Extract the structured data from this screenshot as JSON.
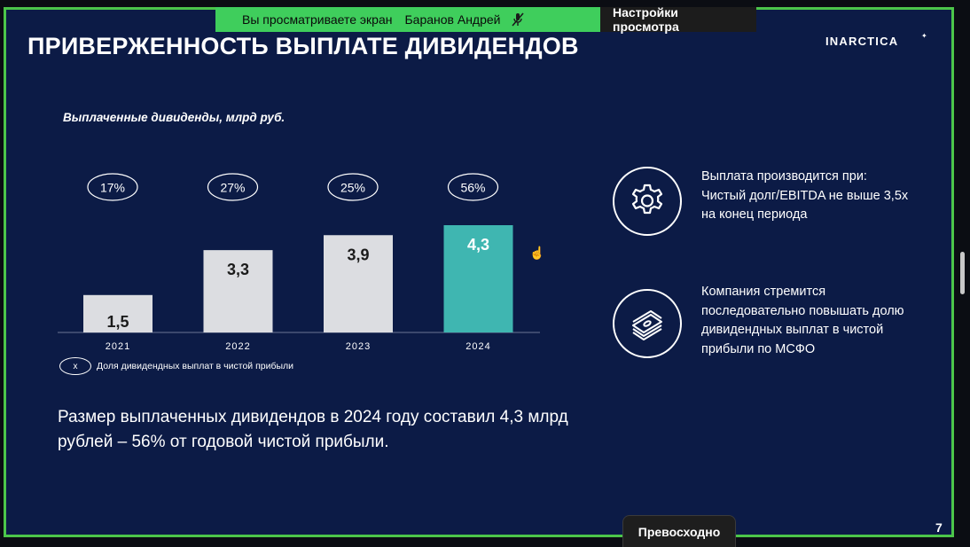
{
  "share_bar": {
    "viewing_text": "Вы просматриваете экран",
    "presenter": "Баранов Андрей",
    "settings_label": "Настройки просмотра"
  },
  "slide": {
    "title": "ПРИВЕРЖЕННОСТЬ ВЫПЛАТЕ ДИВИДЕНДОВ",
    "logo": "INARCTICA",
    "number": "7",
    "legend": {
      "marker": "x",
      "text": "Доля дивидендных выплат в чистой прибыли"
    },
    "summary": "Размер выплаченных дивидендов в 2024 году составил 4,3 млрд рублей – 56% от годовой чистой прибыли.",
    "info_blocks": [
      {
        "icon": "gear-icon",
        "text": "Выплата производится при: Чистый долг/EBITDA не выше 3,5х на конец периода"
      },
      {
        "icon": "cash-stack-icon",
        "text": "Компания стремится последовательно повышать долю дивидендных выплат в чистой прибыли по МСФО"
      }
    ]
  },
  "chart_data": {
    "type": "bar",
    "title": "Выплаченные дивиденды, млрд руб.",
    "categories": [
      "2021",
      "2022",
      "2023",
      "2024"
    ],
    "values": [
      1.5,
      3.3,
      3.9,
      4.3
    ],
    "value_labels": [
      "1,5",
      "3,3",
      "3,9",
      "4,3"
    ],
    "payout_share": [
      "17%",
      "27%",
      "25%",
      "56%"
    ],
    "ylim": [
      0,
      4.3
    ],
    "colors": {
      "default": "#dcdde1",
      "highlight": "#3fb6b1"
    },
    "highlight_index": 3
  },
  "reaction": {
    "label": "Превосходно"
  },
  "colors": {
    "slide_bg": "#0c1b46",
    "frame": "#4cc64a",
    "banner": "#3fce5c"
  }
}
